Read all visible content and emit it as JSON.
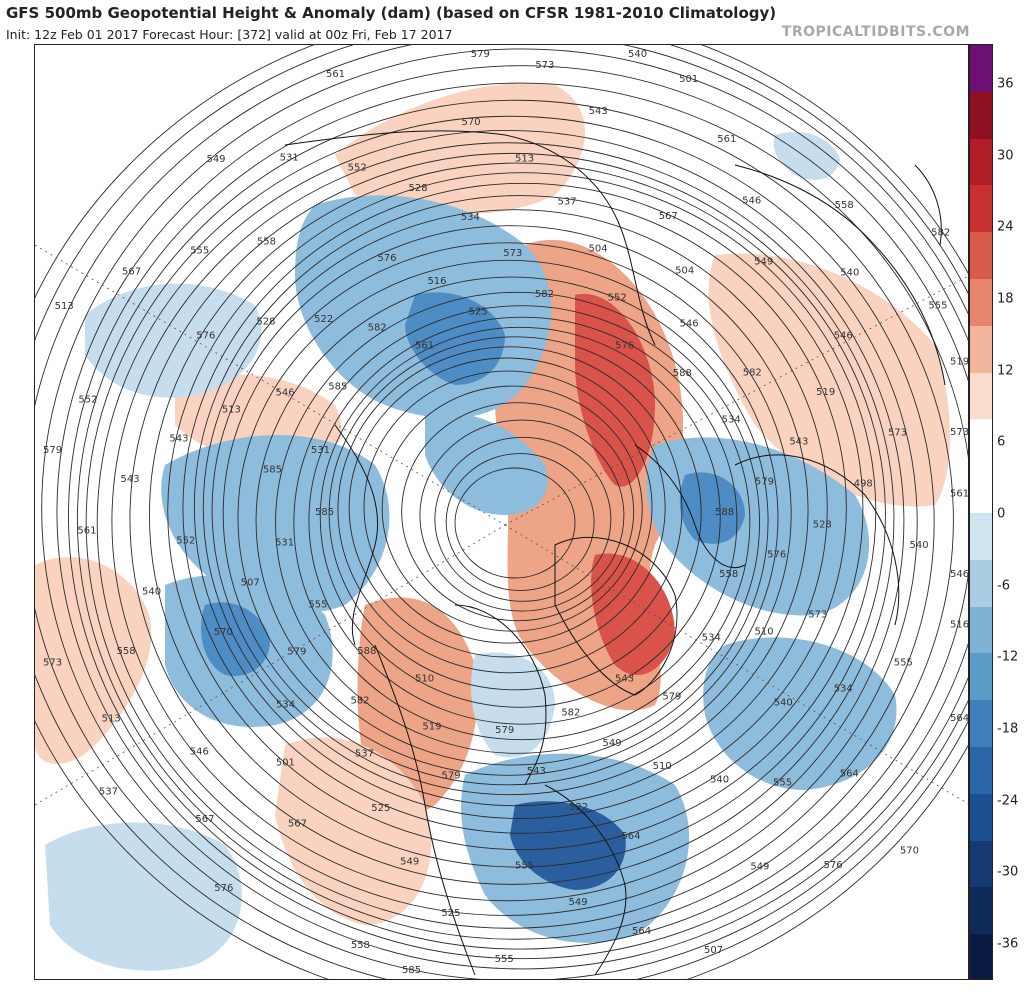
{
  "header": {
    "title": "GFS 500mb Geopotential Height & Anomaly (dam) (based on CFSR 1981-2010 Climatology)",
    "subtitle": "Init: 12z Feb 01 2017   Forecast Hour: [372]   valid at 00z Fri, Feb 17 2017",
    "site": "TROPICALTIDBITS.COM"
  },
  "colorbar": {
    "ticks": [
      "36",
      "30",
      "24",
      "18",
      "12",
      "6",
      "0",
      "-6",
      "-12",
      "-18",
      "-24",
      "-30",
      "-36"
    ],
    "colors": [
      "#6d0f74",
      "#8f1020",
      "#b01d26",
      "#c8302f",
      "#d95a48",
      "#e6846c",
      "#f2b49b",
      "#f9dccc",
      "#ffffff",
      "#ffffff",
      "#cfe3f0",
      "#a9cde3",
      "#7fb3d5",
      "#5b9bc8",
      "#3f80ba",
      "#2a66a8",
      "#1b4f91",
      "#153a73",
      "#0f2a58",
      "#0b1a44"
    ]
  },
  "map": {
    "colors": {
      "positive_light": "#f9d3c0",
      "positive_mid": "#eea486",
      "positive_strong": "#d9534a",
      "positive_deep": "#b81f2c",
      "negative_light": "#c6ddee",
      "negative_mid": "#8ebcdd",
      "negative_strong": "#4d8cc4",
      "negative_deep": "#2a5e9e"
    },
    "contour_labels": [
      "588",
      "588",
      "582",
      "579",
      "585",
      "582",
      "579",
      "576",
      "573",
      "570",
      "567",
      "564",
      "576",
      "573",
      "567",
      "570",
      "564",
      "561",
      "558",
      "555",
      "549",
      "546",
      "537",
      "540",
      "543",
      "531",
      "534",
      "519",
      "516",
      "510",
      "507",
      "504",
      "522",
      "528",
      "498",
      "501",
      "513",
      "555",
      "543",
      "540",
      "525",
      "531",
      "516",
      "513",
      "501",
      "507",
      "513",
      "519",
      "510",
      "525",
      "534",
      "531",
      "546",
      "543",
      "522",
      "528",
      "534",
      "537",
      "540",
      "543",
      "546",
      "549",
      "552",
      "555",
      "558",
      "561",
      "564",
      "567",
      "573",
      "576",
      "579",
      "570",
      "585",
      "588",
      "579",
      "582",
      "576",
      "579",
      "504",
      "510",
      "513",
      "519",
      "525",
      "528",
      "534",
      "540",
      "546",
      "549",
      "555",
      "561",
      "567",
      "573",
      "576",
      "579",
      "582",
      "585",
      "561",
      "558",
      "555",
      "552",
      "549",
      "546",
      "543",
      "537",
      "534",
      "540",
      "552",
      "549",
      "555",
      "558",
      "540",
      "546",
      "543",
      "549",
      "552",
      "555",
      "558",
      "561",
      "564",
      "573",
      "576",
      "582",
      "585",
      "579",
      "582",
      "573"
    ]
  }
}
